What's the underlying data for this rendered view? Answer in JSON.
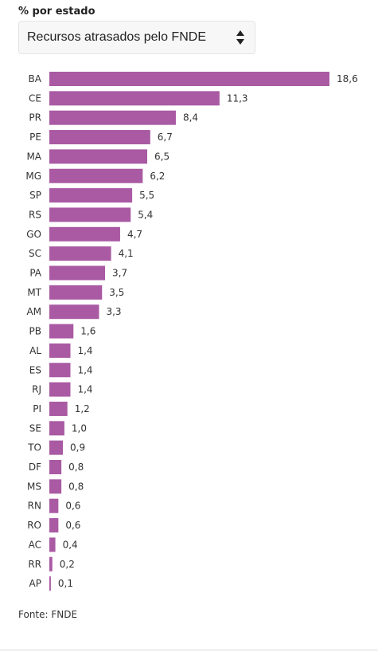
{
  "header": {
    "title": "% por estado"
  },
  "selector": {
    "selected": "Recursos atrasados pelo FNDE",
    "icon": "sort-arrows-icon"
  },
  "chart_data": {
    "type": "bar",
    "orientation": "horizontal",
    "categories": [
      "BA",
      "CE",
      "PR",
      "PE",
      "MA",
      "MG",
      "SP",
      "RS",
      "GO",
      "SC",
      "PA",
      "MT",
      "AM",
      "PB",
      "AL",
      "ES",
      "RJ",
      "PI",
      "SE",
      "TO",
      "DF",
      "MS",
      "RN",
      "RO",
      "AC",
      "RR",
      "AP"
    ],
    "values": [
      18.6,
      11.3,
      8.4,
      6.7,
      6.5,
      6.2,
      5.5,
      5.4,
      4.7,
      4.1,
      3.7,
      3.5,
      3.3,
      1.6,
      1.4,
      1.4,
      1.4,
      1.2,
      1.0,
      0.9,
      0.8,
      0.8,
      0.6,
      0.6,
      0.4,
      0.2,
      0.1
    ],
    "value_labels": [
      "18,6",
      "11,3",
      "8,4",
      "6,7",
      "6,5",
      "6,2",
      "5,5",
      "5,4",
      "4,7",
      "4,1",
      "3,7",
      "3,5",
      "3,3",
      "1,6",
      "1,4",
      "1,4",
      "1,4",
      "1,2",
      "1,0",
      "0,9",
      "0,8",
      "0,8",
      "0,6",
      "0,6",
      "0,4",
      "0,2",
      "0,1"
    ],
    "xlim": [
      0,
      18.6
    ],
    "bar_color": "#a95aa3",
    "grid": false,
    "legend": "none"
  },
  "footer": {
    "source": "Fonte: FNDE"
  }
}
